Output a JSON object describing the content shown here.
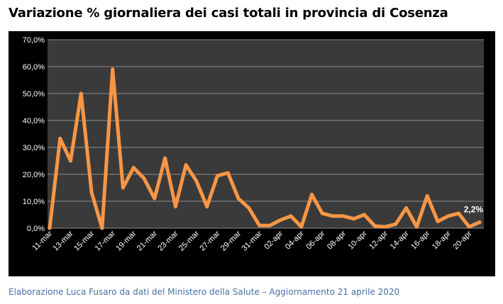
{
  "title": "Variazione % giornaliera dei casi totali in provincia di Cosenza",
  "footer": "Elaborazione Luca Fusaro da dati del Ministero della Salute – Aggiornamento 21 aprile 2020",
  "colors": {
    "background": "#000000",
    "plot_area": "#3a3a3a",
    "gridline": "#8c8c8c",
    "line": "#f79646",
    "text": "#ffffff",
    "footer_text": "#4a6fa5"
  },
  "chart_data": {
    "type": "line",
    "title": "",
    "xlabel": "",
    "ylabel": "",
    "ylim": [
      0,
      70
    ],
    "yticks": [
      "0,0%",
      "10,0%",
      "20,0%",
      "30,0%",
      "40,0%",
      "50,0%",
      "60,0%",
      "70,0%"
    ],
    "x": [
      "11-mar",
      "12-mar",
      "13-mar",
      "14-mar",
      "15-mar",
      "16-mar",
      "17-mar",
      "18-mar",
      "19-mar",
      "20-mar",
      "21-mar",
      "22-mar",
      "23-mar",
      "24-mar",
      "25-mar",
      "26-mar",
      "27-mar",
      "28-mar",
      "29-mar",
      "30-mar",
      "31-mar",
      "01-apr",
      "02-apr",
      "03-apr",
      "04-apr",
      "05-apr",
      "06-apr",
      "07-apr",
      "08-apr",
      "09-apr",
      "10-apr",
      "11-apr",
      "12-apr",
      "13-apr",
      "14-apr",
      "15-apr",
      "16-apr",
      "17-apr",
      "18-apr",
      "19-apr",
      "20-apr",
      "21-apr"
    ],
    "xtick_labels": [
      "11-mar",
      "13-mar",
      "15-mar",
      "17-mar",
      "19-mar",
      "21-mar",
      "23-mar",
      "25-mar",
      "27-mar",
      "29-mar",
      "31-mar",
      "02-apr",
      "04-apr",
      "06-apr",
      "08-apr",
      "10-apr",
      "12-apr",
      "14-apr",
      "16-apr",
      "18-apr",
      "20-apr"
    ],
    "series": [
      {
        "values": [
          0,
          33.3,
          25.0,
          50.0,
          13.3,
          0,
          59.0,
          15.0,
          22.5,
          18.5,
          11.0,
          26.0,
          8.0,
          23.5,
          17.5,
          8.0,
          19.5,
          20.5,
          11.0,
          7.5,
          1.0,
          1.0,
          3.0,
          4.5,
          0.5,
          12.5,
          5.5,
          4.5,
          4.5,
          3.5,
          5.0,
          0.8,
          0.5,
          1.5,
          7.5,
          0.5,
          12.0,
          2.5,
          4.5,
          5.5,
          0.5,
          2.2
        ]
      }
    ],
    "annotations": [
      {
        "label": "2,2%",
        "x": "21-apr"
      }
    ],
    "grid": true,
    "legend": "none"
  }
}
